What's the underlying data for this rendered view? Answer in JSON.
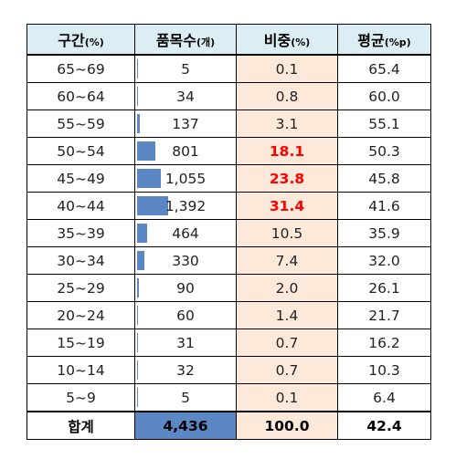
{
  "headers": [
    {
      "label": "구간",
      "unit": "(%)"
    },
    {
      "label": "품목수",
      "unit": "(개)"
    },
    {
      "label": "비중",
      "unit": "(%)"
    },
    {
      "label": "평균",
      "unit": "(%p)"
    }
  ],
  "rows": [
    {
      "range": "65~69",
      "count": "5",
      "count_value": 5,
      "share": "0.1",
      "avg": "65.4",
      "highlight": false
    },
    {
      "range": "60~64",
      "count": "34",
      "count_value": 34,
      "share": "0.8",
      "avg": "60.0",
      "highlight": false
    },
    {
      "range": "55~59",
      "count": "137",
      "count_value": 137,
      "share": "3.1",
      "avg": "55.1",
      "highlight": false
    },
    {
      "range": "50~54",
      "count": "801",
      "count_value": 801,
      "share": "18.1",
      "avg": "50.3",
      "highlight": true
    },
    {
      "range": "45~49",
      "count": "1,055",
      "count_value": 1055,
      "share": "23.8",
      "avg": "45.8",
      "highlight": true
    },
    {
      "range": "40~44",
      "count": "1,392",
      "count_value": 1392,
      "share": "31.4",
      "avg": "41.6",
      "highlight": true
    },
    {
      "range": "35~39",
      "count": "464",
      "count_value": 464,
      "share": "10.5",
      "avg": "35.9",
      "highlight": false
    },
    {
      "range": "30~34",
      "count": "330",
      "count_value": 330,
      "share": "7.4",
      "avg": "32.0",
      "highlight": false
    },
    {
      "range": "25~29",
      "count": "90",
      "count_value": 90,
      "share": "2.0",
      "avg": "26.1",
      "highlight": false
    },
    {
      "range": "20~24",
      "count": "60",
      "count_value": 60,
      "share": "1.4",
      "avg": "21.7",
      "highlight": false
    },
    {
      "range": "15~19",
      "count": "31",
      "count_value": 31,
      "share": "0.7",
      "avg": "16.2",
      "highlight": false
    },
    {
      "range": "10~14",
      "count": "32",
      "count_value": 32,
      "share": "0.7",
      "avg": "10.3",
      "highlight": false
    },
    {
      "range": "5~9",
      "count": "5",
      "count_value": 5,
      "share": "0.1",
      "avg": "6.4",
      "highlight": false
    }
  ],
  "total": {
    "label": "합계",
    "count": "4,436",
    "share": "100.0",
    "avg": "42.4"
  },
  "colors": {
    "header_bg": "#dbeef4",
    "share_bg": "#fde9d9",
    "bar": "#5b87c5",
    "highlight_text": "#ff0000"
  }
}
